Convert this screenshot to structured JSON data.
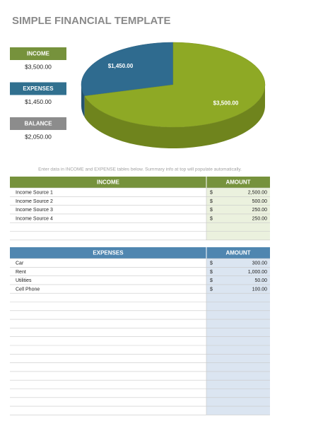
{
  "header": {
    "title": "SIMPLE FINANCIAL TEMPLATE"
  },
  "summary": [
    {
      "label": "INCOME",
      "value": "$3,500.00"
    },
    {
      "label": "EXPENSES",
      "value": "$1,450.00"
    },
    {
      "label": "BALANCE",
      "value": "$2,050.00"
    }
  ],
  "pie": {
    "type": "pie",
    "values": [
      1450,
      3500
    ],
    "value_labels": [
      "$1,450.00",
      "$3,500.00"
    ],
    "colors": [
      "#2f6b8f",
      "#8ea925"
    ]
  },
  "note": "Enter data in INCOME and EXPENSE tables below. Summary info at top will populate automatically.",
  "income_table": {
    "headers": [
      "INCOME",
      "AMOUNT"
    ],
    "rows": [
      [
        "Income Source 1",
        "$",
        "2,500.00"
      ],
      [
        "Income Source 2",
        "$",
        "500.00"
      ],
      [
        "Income Source 3",
        "$",
        "250.00"
      ],
      [
        "Income Source 4",
        "$",
        "250.00"
      ]
    ]
  },
  "expenses_table": {
    "headers": [
      "EXPENSES",
      "AMOUNT"
    ],
    "rows": [
      [
        "Car",
        "$",
        "300.00"
      ],
      [
        "Rent",
        "$",
        "1,000.00"
      ],
      [
        "Utilities",
        "$",
        "50.00"
      ],
      [
        "Cell Phone",
        "$",
        "100.00"
      ]
    ]
  }
}
